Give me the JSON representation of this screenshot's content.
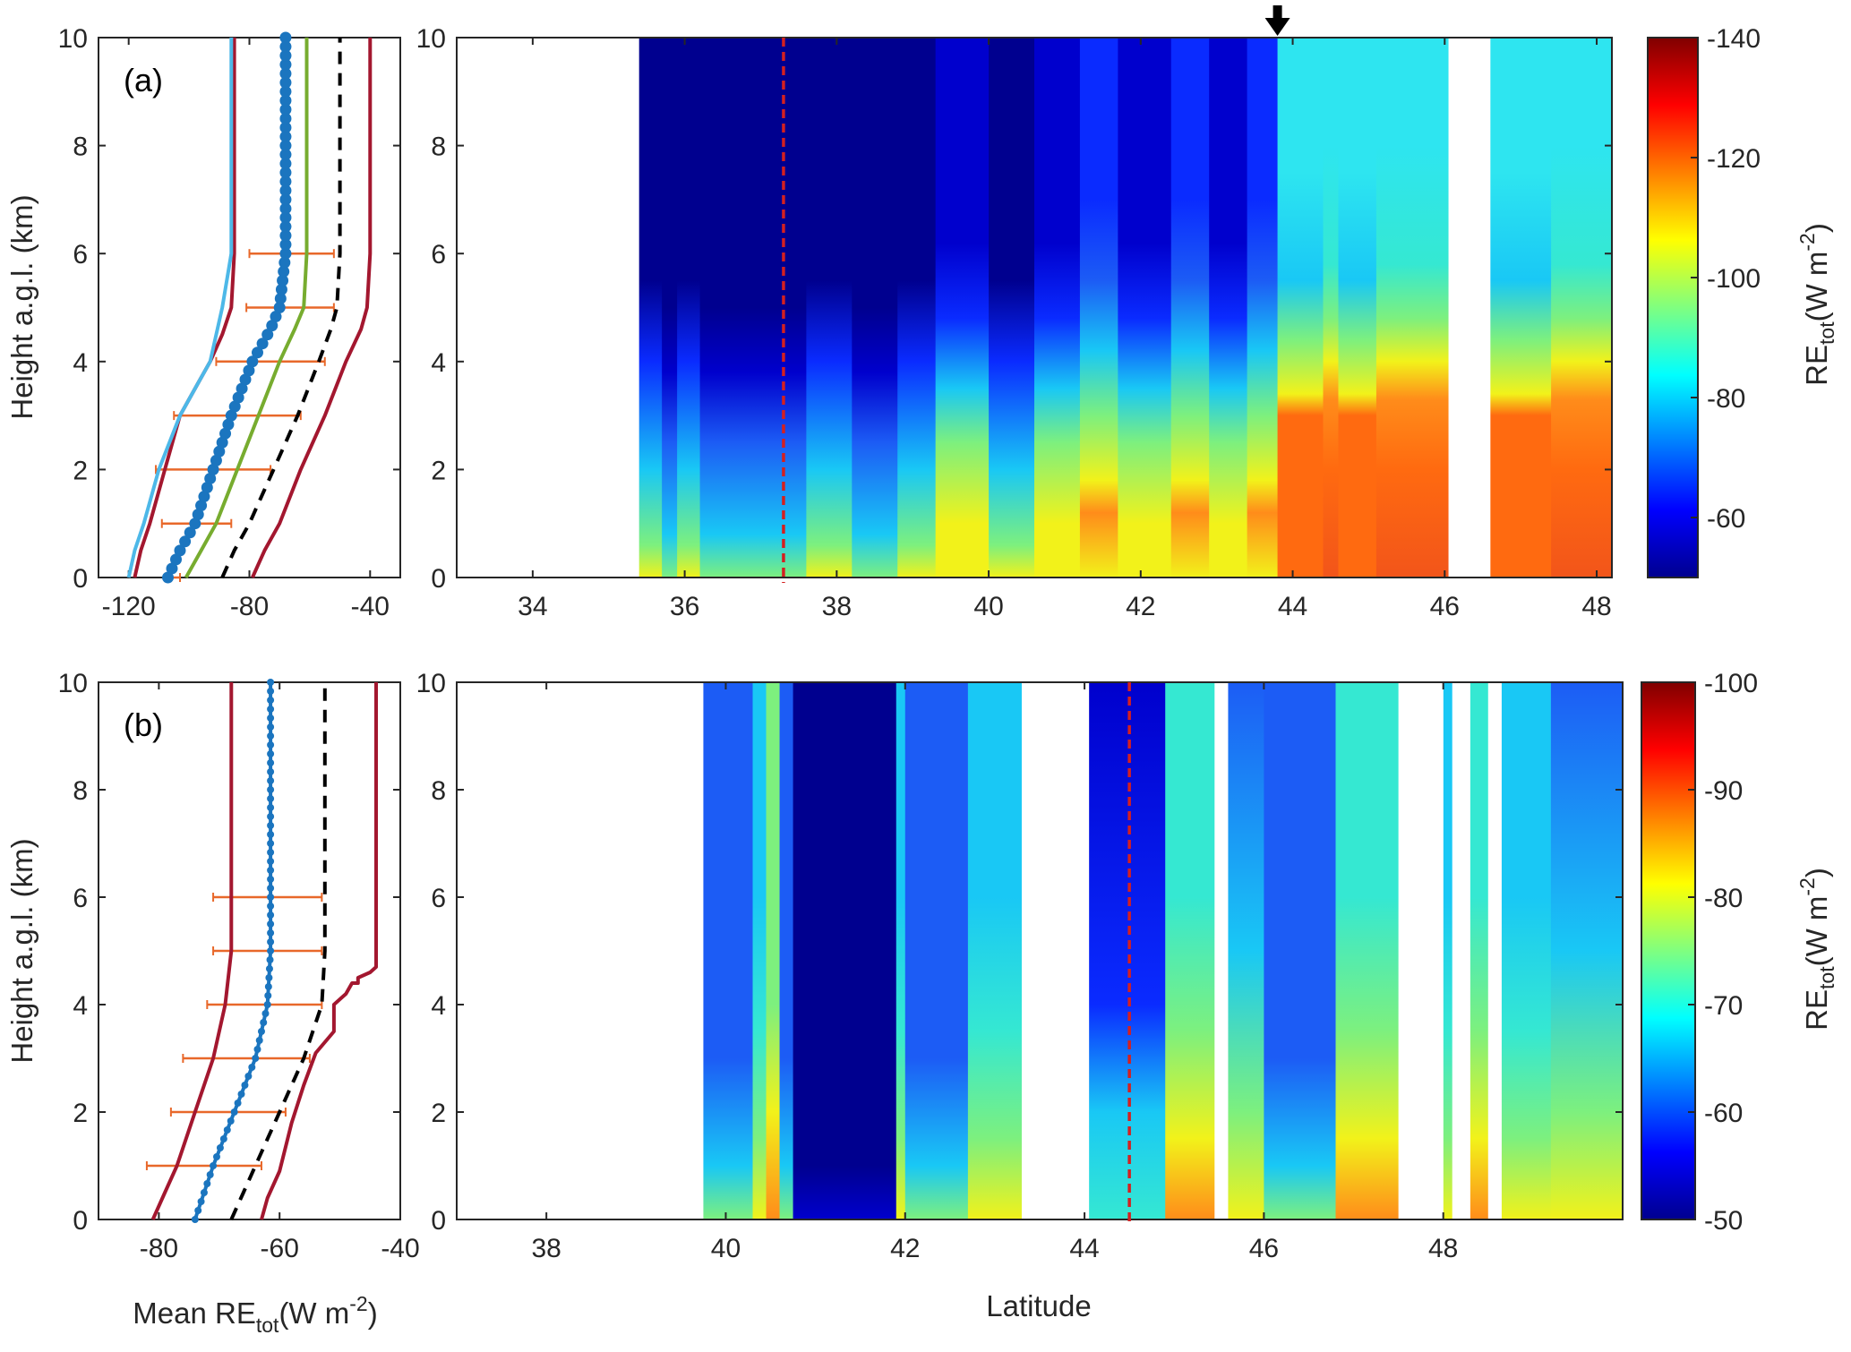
{
  "figure": {
    "panel_a_label": "(a)",
    "panel_b_label": "(b)",
    "ylabel_left": "Height a.g.l. (km)",
    "xlabel_profile_main": "Mean RE",
    "xlabel_profile_sub": "tot",
    "xlabel_profile_unit": "(W m",
    "xlabel_profile_exp": "-2",
    "xlabel_profile_close": ")",
    "xlabel_curtain": "Latitude",
    "cbar_label_main": "RE",
    "cbar_label_sub": "tot",
    "cbar_label_unit": "(W m",
    "cbar_label_exp": "-2",
    "cbar_label_close": ")"
  },
  "colors": {
    "dark_red": "#a3172f",
    "light_blue": "#4db8e8",
    "mean_blue": "#1b75bf",
    "green": "#77ac2f",
    "black_dashed": "#000000",
    "error_bar": "#e8682a",
    "marker_line": "#d42020"
  },
  "chart_data": [
    {
      "id": "a-profile",
      "type": "line",
      "xlim": [
        -130,
        -30
      ],
      "ylim": [
        0,
        10
      ],
      "xticks": [
        -120,
        -80,
        -40
      ],
      "yticks": [
        0,
        2,
        4,
        6,
        8,
        10
      ],
      "series": [
        {
          "key": "red_left",
          "color": "dark_red",
          "x": [
            -118,
            -116,
            -113,
            -108,
            -103,
            -97,
            -93,
            -89,
            -86,
            -85,
            -85
          ],
          "y": [
            0,
            0.5,
            1,
            2,
            3,
            3.6,
            4,
            4.5,
            5,
            6,
            10
          ]
        },
        {
          "key": "light_blue",
          "color": "light_blue",
          "x": [
            -120,
            -118,
            -115,
            -110,
            -103,
            -97,
            -93,
            -89,
            -86,
            -86
          ],
          "y": [
            0,
            0.5,
            1,
            2,
            3,
            3.6,
            4,
            5,
            6,
            10
          ]
        },
        {
          "key": "mean",
          "color": "mean_blue",
          "x": [
            -107,
            -103,
            -98,
            -92,
            -86,
            -79,
            -73,
            -70,
            -68,
            -68,
            -68
          ],
          "y": [
            0,
            0.5,
            1,
            2,
            3,
            4,
            4.6,
            5,
            6,
            8,
            10
          ]
        },
        {
          "key": "green",
          "color": "green",
          "x": [
            -101,
            -96,
            -91,
            -84,
            -77,
            -70,
            -65,
            -62,
            -61,
            -61
          ],
          "y": [
            0,
            0.5,
            1,
            2,
            3,
            4,
            4.6,
            5,
            6,
            10
          ]
        },
        {
          "key": "black_dashed",
          "color": "black_dashed",
          "x": [
            -89,
            -85,
            -80,
            -72,
            -64,
            -57,
            -53,
            -51,
            -50,
            -50
          ],
          "y": [
            0,
            0.5,
            1,
            2,
            3,
            4,
            4.6,
            5,
            6,
            10
          ]
        },
        {
          "key": "red_right",
          "color": "dark_red",
          "x": [
            -79,
            -75,
            -70,
            -63,
            -55,
            -48,
            -43,
            -41,
            -40,
            -40
          ],
          "y": [
            0,
            0.5,
            1,
            2,
            3,
            4,
            4.6,
            5,
            6,
            10
          ]
        }
      ],
      "errorbars": [
        {
          "y": 0,
          "lo": -107,
          "hi": -103
        },
        {
          "y": 1,
          "lo": -109,
          "hi": -86
        },
        {
          "y": 2,
          "lo": -111,
          "hi": -73
        },
        {
          "y": 3,
          "lo": -105,
          "hi": -63
        },
        {
          "y": 4,
          "lo": -91,
          "hi": -55
        },
        {
          "y": 5,
          "lo": -81,
          "hi": -52
        },
        {
          "y": 6,
          "lo": -80,
          "hi": -52
        }
      ]
    },
    {
      "id": "a-curtain",
      "type": "heatmap",
      "xlim": [
        33,
        48.2
      ],
      "ylim": [
        0,
        10
      ],
      "xticks": [
        34,
        36,
        38,
        40,
        42,
        44,
        46,
        48
      ],
      "yticks": [
        0,
        2,
        4,
        6,
        8,
        10
      ],
      "marker_latitude": 37.3,
      "arrow_latitude": 43.8,
      "data_gaps": [
        [
          46.05,
          46.6
        ]
      ],
      "data_range": [
        35.4,
        48.2
      ]
    },
    {
      "id": "a-colorbar",
      "type": "heatmap",
      "clim": [
        -140,
        -50
      ],
      "ticks": [
        -140,
        -120,
        -100,
        -80,
        -60
      ]
    },
    {
      "id": "b-profile",
      "type": "line",
      "xlim": [
        -90,
        -40
      ],
      "ylim": [
        0,
        10
      ],
      "xticks": [
        -80,
        -60,
        -40
      ],
      "yticks": [
        0,
        2,
        4,
        6,
        8,
        10
      ],
      "series": [
        {
          "key": "red_left",
          "color": "dark_red",
          "x": [
            -81,
            -79,
            -77,
            -74,
            -71,
            -69,
            -68,
            -68
          ],
          "y": [
            0,
            0.5,
            1,
            2,
            3,
            4,
            5,
            10
          ]
        },
        {
          "key": "mean",
          "color": "mean_blue",
          "x": [
            -74,
            -72.5,
            -71,
            -67.5,
            -64,
            -62,
            -61.5,
            -61.5
          ],
          "y": [
            0,
            0.5,
            1,
            2,
            3,
            4,
            5,
            10
          ]
        },
        {
          "key": "black_dashed",
          "color": "black_dashed",
          "x": [
            -68,
            -66,
            -64,
            -60,
            -56,
            -53,
            -52.5,
            -52.5
          ],
          "y": [
            0,
            0.5,
            1,
            2,
            3,
            4,
            5,
            10
          ]
        },
        {
          "key": "red_right",
          "color": "dark_red",
          "x": [
            -63,
            -62,
            -60,
            -58,
            -56,
            -54,
            -51,
            -51,
            -49,
            -48,
            -47,
            -47,
            -45,
            -44,
            -44
          ],
          "y": [
            0,
            0.4,
            0.9,
            1.8,
            2.5,
            3.1,
            3.5,
            4.0,
            4.2,
            4.4,
            4.4,
            4.5,
            4.6,
            4.7,
            10
          ]
        }
      ],
      "errorbars": [
        {
          "y": 1,
          "lo": -82,
          "hi": -63
        },
        {
          "y": 2,
          "lo": -78,
          "hi": -59
        },
        {
          "y": 3,
          "lo": -76,
          "hi": -55
        },
        {
          "y": 4,
          "lo": -72,
          "hi": -53
        },
        {
          "y": 5,
          "lo": -71,
          "hi": -53
        },
        {
          "y": 6,
          "lo": -71,
          "hi": -53
        }
      ]
    },
    {
      "id": "b-curtain",
      "type": "heatmap",
      "xlim": [
        37,
        50
      ],
      "ylim": [
        0,
        10
      ],
      "xticks": [
        38,
        40,
        42,
        44,
        46,
        48
      ],
      "yticks": [
        0,
        2,
        4,
        6,
        8,
        10
      ],
      "marker_latitude": 44.5,
      "data_gaps": [
        [
          43.3,
          44.05
        ],
        [
          45.45,
          45.6
        ],
        [
          47.5,
          48.0
        ],
        [
          48.1,
          48.3
        ],
        [
          48.5,
          48.65
        ]
      ],
      "data_range": [
        39.75,
        50.0
      ]
    },
    {
      "id": "b-colorbar",
      "type": "heatmap",
      "clim": [
        -100,
        -50
      ],
      "ticks": [
        -100,
        -90,
        -80,
        -70,
        -60,
        -50
      ]
    }
  ]
}
